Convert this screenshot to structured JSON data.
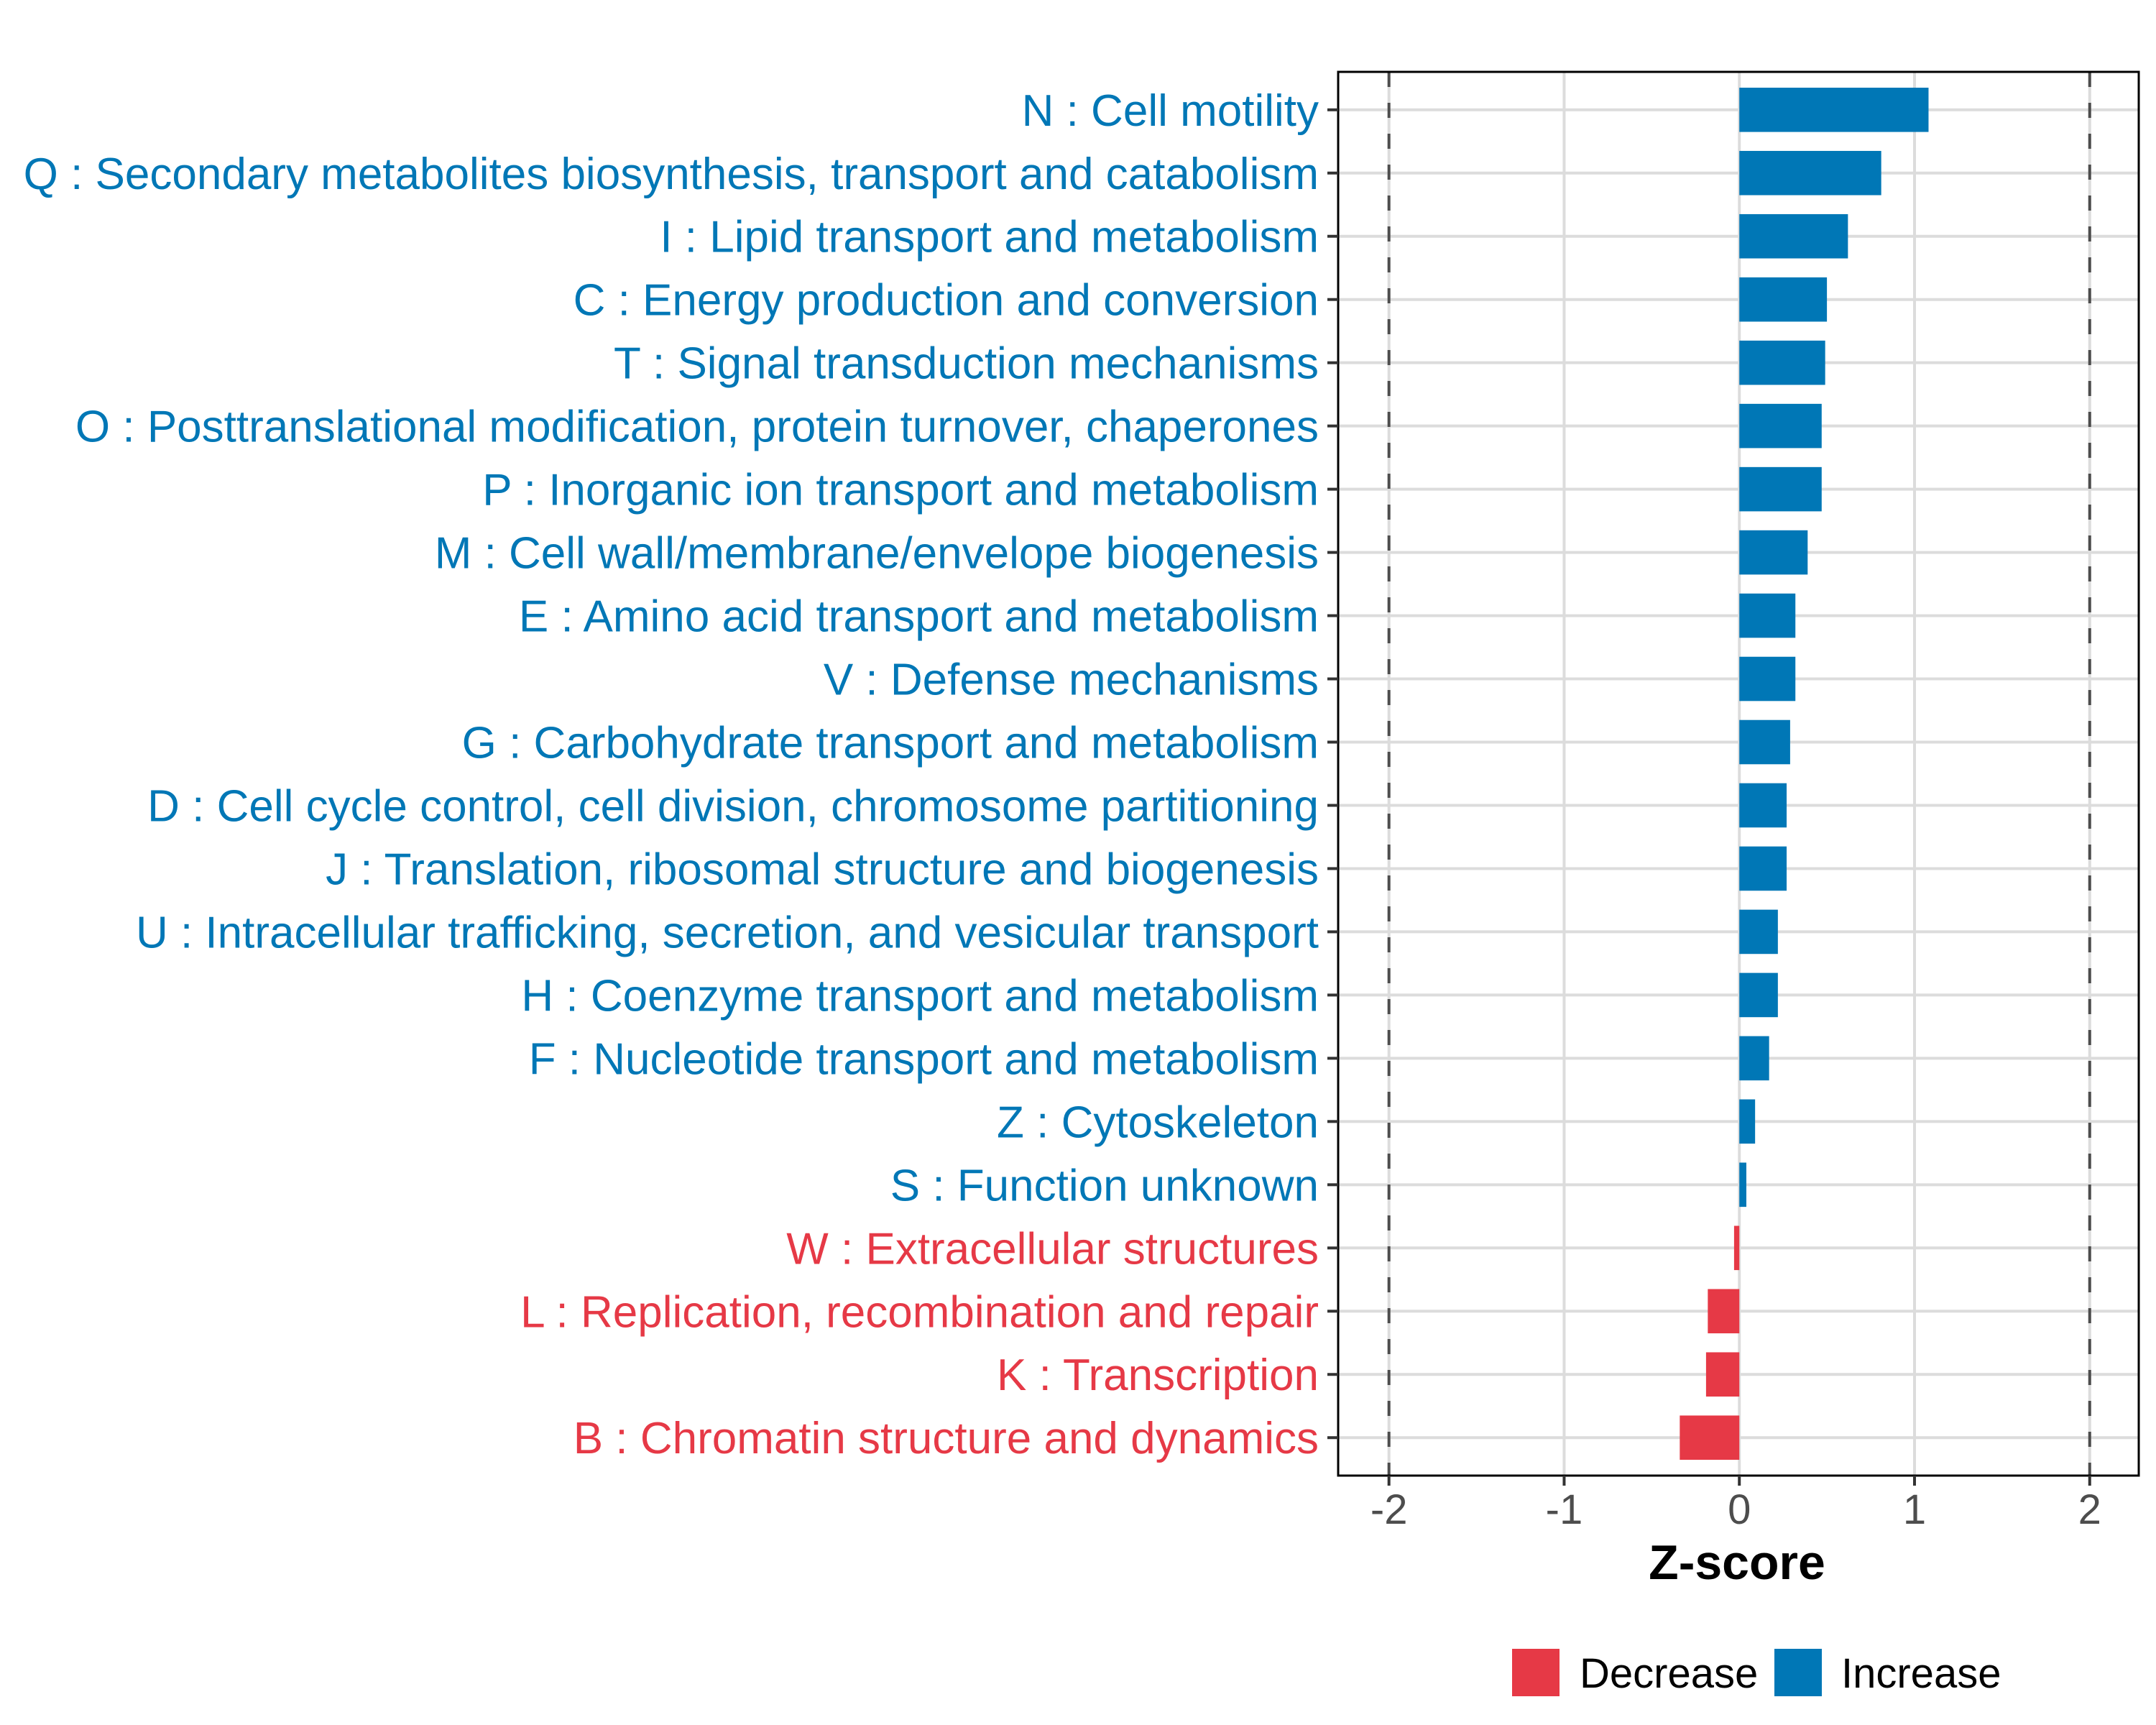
{
  "chart_data": {
    "type": "bar",
    "orientation": "horizontal",
    "title": "",
    "xlabel": "Z-score",
    "ylabel": "",
    "xlim": [
      -2.29,
      2.28
    ],
    "xticks": [
      -2,
      -1,
      0,
      1,
      2
    ],
    "xtick_labels": [
      "-2",
      "-1",
      "0",
      "1",
      "2"
    ],
    "reference_lines": [
      -2,
      2
    ],
    "grid": true,
    "legend_position": "bottom",
    "legend": [
      {
        "label": "Decrease",
        "color": "#E63946"
      },
      {
        "label": "Increase",
        "color": "#0077B6"
      }
    ],
    "colors": {
      "Decrease": "#E63946",
      "Increase": "#0077B6"
    },
    "categories": [
      "N : Cell motility",
      "Q : Secondary metabolites biosynthesis, transport and catabolism",
      "I : Lipid transport and metabolism",
      "C : Energy production and conversion",
      "T : Signal transduction mechanisms",
      "O : Posttranslational modification, protein turnover, chaperones",
      "P : Inorganic ion transport and metabolism",
      "M : Cell wall/membrane/envelope biogenesis",
      "E : Amino acid transport and metabolism",
      "V : Defense mechanisms",
      "G : Carbohydrate transport and metabolism",
      "D : Cell cycle control, cell division, chromosome partitioning",
      "J : Translation, ribosomal structure and biogenesis",
      "U : Intracellular trafficking, secretion, and vesicular transport",
      "H : Coenzyme transport and metabolism",
      "F : Nucleotide transport and metabolism",
      "Z : Cytoskeleton",
      "S : Function unknown",
      "W : Extracellular structures",
      "L : Replication, recombination and repair",
      "K : Transcription",
      "B : Chromatin structure and dynamics"
    ],
    "values": [
      1.08,
      0.81,
      0.62,
      0.5,
      0.49,
      0.47,
      0.47,
      0.39,
      0.32,
      0.32,
      0.29,
      0.27,
      0.27,
      0.22,
      0.22,
      0.17,
      0.09,
      0.04,
      -0.03,
      -0.18,
      -0.19,
      -0.34
    ],
    "groups": [
      "Increase",
      "Increase",
      "Increase",
      "Increase",
      "Increase",
      "Increase",
      "Increase",
      "Increase",
      "Increase",
      "Increase",
      "Increase",
      "Increase",
      "Increase",
      "Increase",
      "Increase",
      "Increase",
      "Increase",
      "Increase",
      "Decrease",
      "Decrease",
      "Decrease",
      "Decrease"
    ]
  }
}
